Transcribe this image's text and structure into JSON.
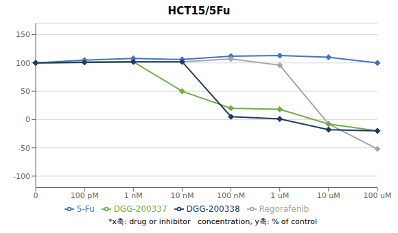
{
  "chart_data": {
    "type": "line",
    "title": "HCT15/5Fu",
    "categories": [
      "0",
      "100 pM",
      "1 nM",
      "10 nM",
      "100 nM",
      "1 uM",
      "10 uM",
      "100 uM"
    ],
    "series": [
      {
        "name": "5-Fu",
        "color": "#4472C4",
        "marker": "diamond",
        "values": [
          100,
          105,
          108,
          106,
          112,
          113,
          110,
          100
        ]
      },
      {
        "name": "Regorafenib",
        "color": "#A5A5A5",
        "marker": "diamond",
        "values": [
          100,
          102,
          102,
          102,
          107,
          96,
          -8,
          -52
        ]
      },
      {
        "name": "DGG-200337",
        "color": "#70AD47",
        "marker": "diamond",
        "values": [
          100,
          101,
          102,
          50,
          20,
          18,
          -8,
          -20
        ]
      },
      {
        "name": "DGG-200338",
        "color": "#203864",
        "marker": "diamond",
        "values": [
          100,
          101,
          102,
          102,
          5,
          1,
          -18,
          -20
        ]
      }
    ],
    "ylim": [
      -120,
      170
    ],
    "yticks": [
      -100,
      -50,
      0,
      50,
      100,
      150
    ],
    "grid": true,
    "legend": "bottom",
    "annotations": [
      "*x축: drug or inhibitor   concentration, y축: % of control"
    ]
  }
}
